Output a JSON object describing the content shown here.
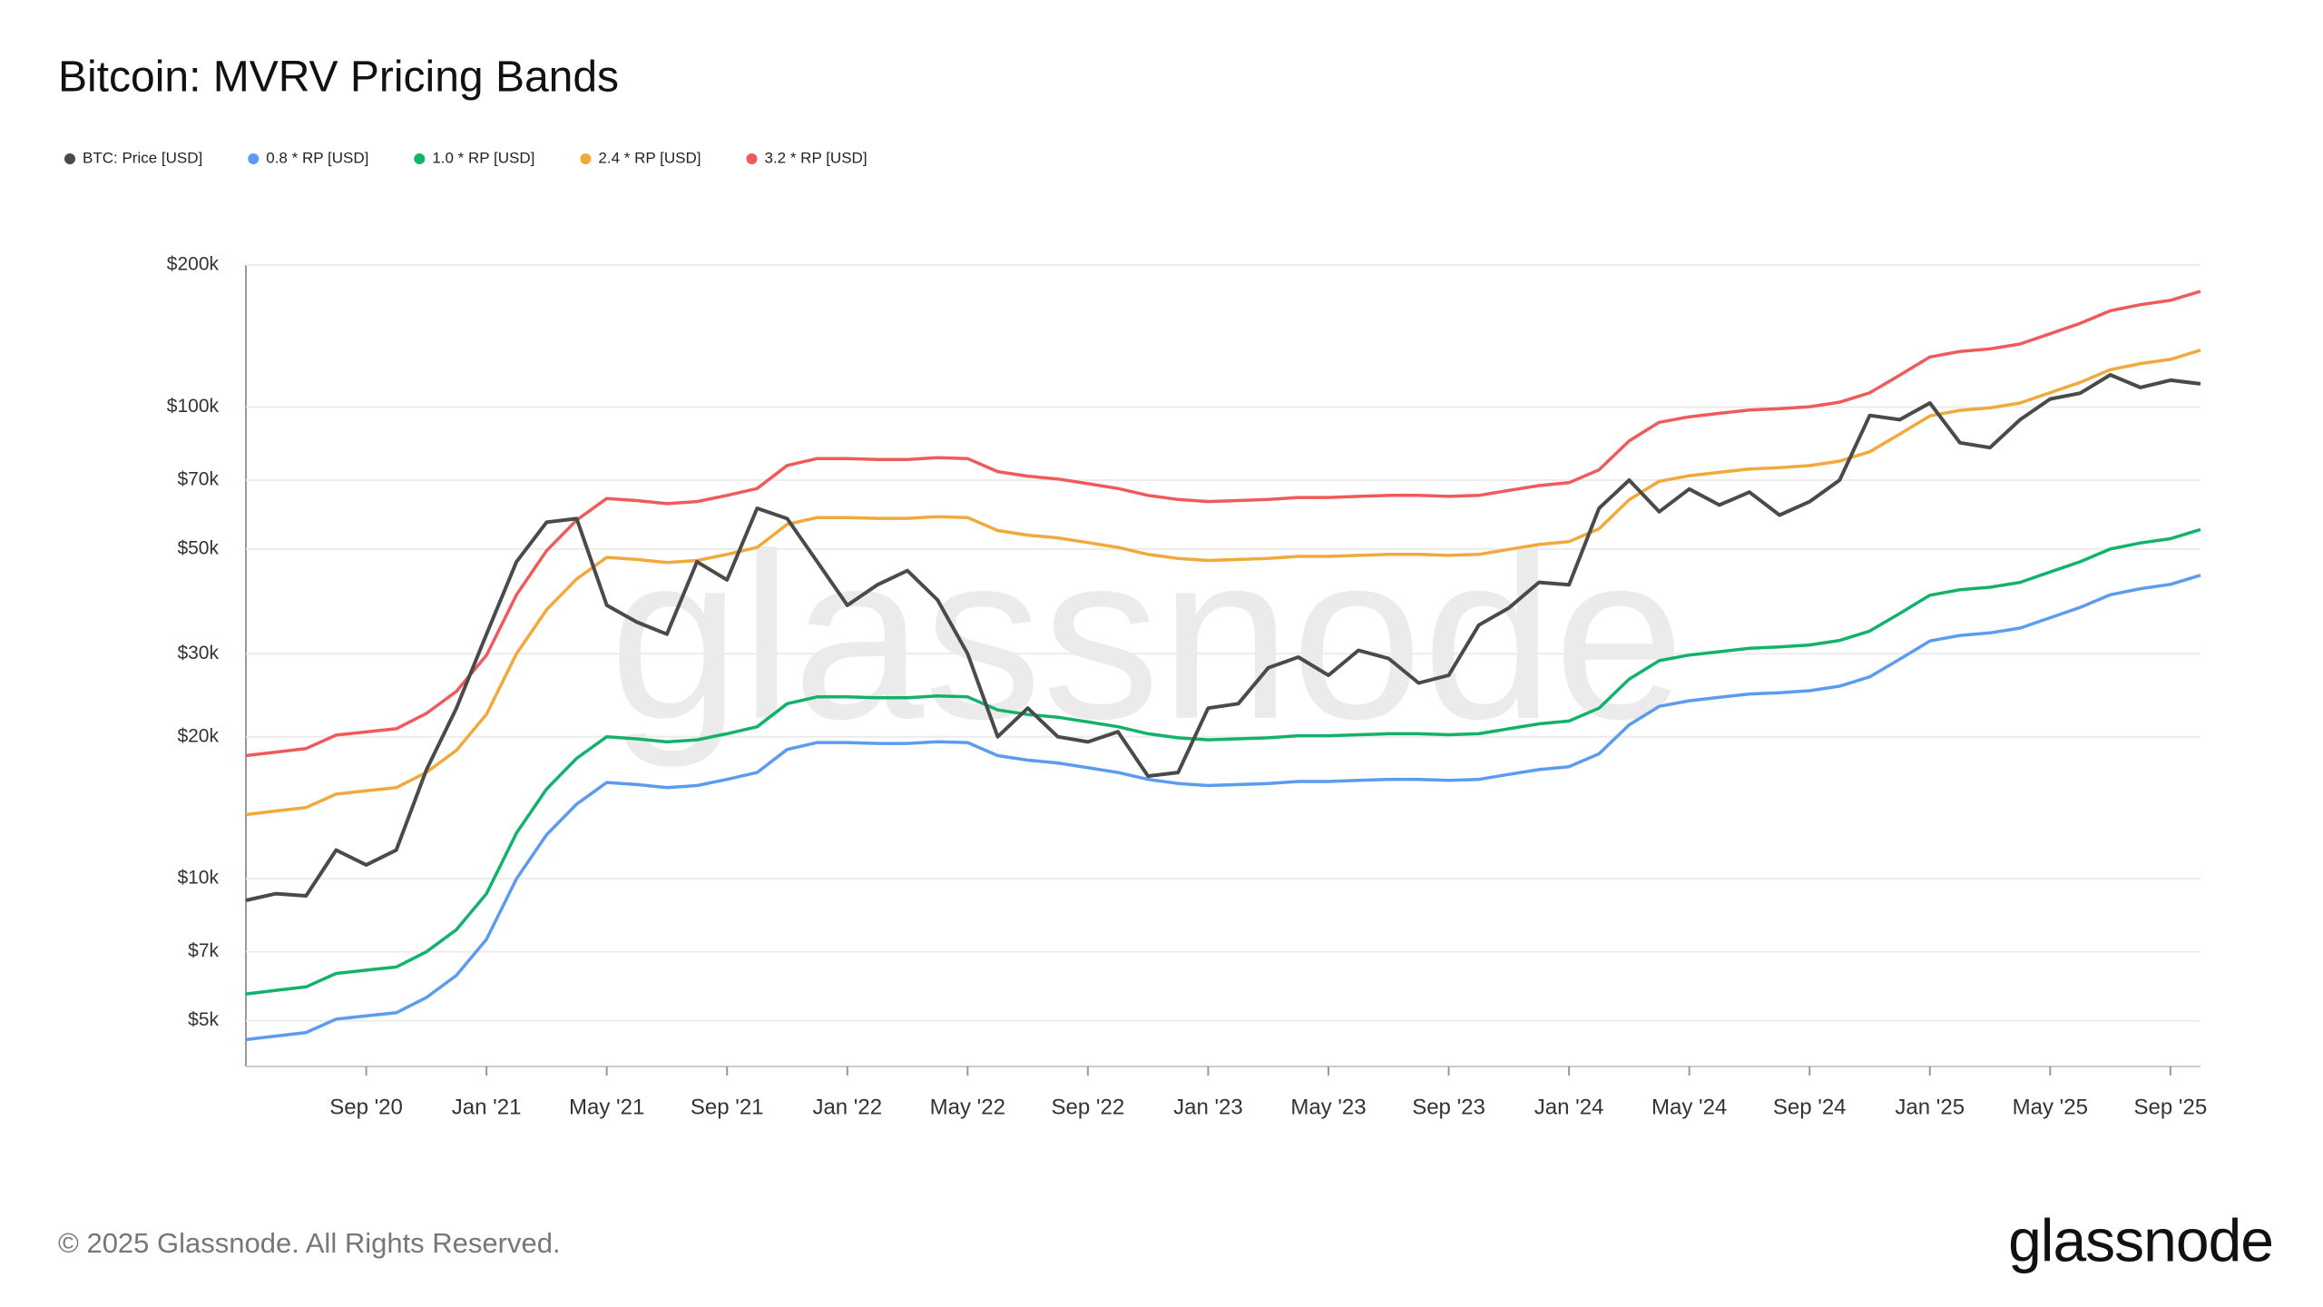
{
  "chart_data": {
    "type": "line",
    "title": "Bitcoin: MVRV Pricing Bands",
    "footer": "© 2025 Glassnode. All Rights Reserved.",
    "brand": "glassnode",
    "watermark": "glassnode",
    "yscale": "log",
    "grid": true,
    "legend": "top-left",
    "x": [
      "2020-05",
      "2020-06",
      "2020-07",
      "2020-08",
      "2020-09",
      "2020-10",
      "2020-11",
      "2020-12",
      "2021-01",
      "2021-02",
      "2021-03",
      "2021-04",
      "2021-05",
      "2021-06",
      "2021-07",
      "2021-08",
      "2021-09",
      "2021-10",
      "2021-11",
      "2021-12",
      "2022-01",
      "2022-02",
      "2022-03",
      "2022-04",
      "2022-05",
      "2022-06",
      "2022-07",
      "2022-08",
      "2022-09",
      "2022-10",
      "2022-11",
      "2022-12",
      "2023-01",
      "2023-02",
      "2023-03",
      "2023-04",
      "2023-05",
      "2023-06",
      "2023-07",
      "2023-08",
      "2023-09",
      "2023-10",
      "2023-11",
      "2023-12",
      "2024-01",
      "2024-02",
      "2024-03",
      "2024-04",
      "2024-05",
      "2024-06",
      "2024-07",
      "2024-08",
      "2024-09",
      "2024-10",
      "2024-11",
      "2024-12",
      "2025-01",
      "2025-02",
      "2025-03",
      "2025-04",
      "2025-05",
      "2025-06",
      "2025-07",
      "2025-08",
      "2025-09",
      "2025-10"
    ],
    "xticks": [
      {
        "value": "2020-09",
        "label": "Sep '20"
      },
      {
        "value": "2021-01",
        "label": "Jan '21"
      },
      {
        "value": "2021-05",
        "label": "May '21"
      },
      {
        "value": "2021-09",
        "label": "Sep '21"
      },
      {
        "value": "2022-01",
        "label": "Jan '22"
      },
      {
        "value": "2022-05",
        "label": "May '22"
      },
      {
        "value": "2022-09",
        "label": "Sep '22"
      },
      {
        "value": "2023-01",
        "label": "Jan '23"
      },
      {
        "value": "2023-05",
        "label": "May '23"
      },
      {
        "value": "2023-09",
        "label": "Sep '23"
      },
      {
        "value": "2024-01",
        "label": "Jan '24"
      },
      {
        "value": "2024-05",
        "label": "May '24"
      },
      {
        "value": "2024-09",
        "label": "Sep '24"
      },
      {
        "value": "2025-01",
        "label": "Jan '25"
      },
      {
        "value": "2025-05",
        "label": "May '25"
      },
      {
        "value": "2025-09",
        "label": "Sep '25"
      }
    ],
    "ylim": [
      4000,
      200000
    ],
    "yticks": [
      {
        "value": 5000,
        "label": "$5k"
      },
      {
        "value": 7000,
        "label": "$7k"
      },
      {
        "value": 10000,
        "label": "$10k"
      },
      {
        "value": 20000,
        "label": "$20k"
      },
      {
        "value": 30000,
        "label": "$30k"
      },
      {
        "value": 50000,
        "label": "$50k"
      },
      {
        "value": 70000,
        "label": "$70k"
      },
      {
        "value": 100000,
        "label": "$100k"
      },
      {
        "value": 200000,
        "label": "$200k"
      }
    ],
    "series": [
      {
        "name": "BTC: Price [USD]",
        "color": "#4a4a4a",
        "values": [
          9000,
          9300,
          9200,
          11500,
          10700,
          11500,
          17000,
          23000,
          33000,
          47000,
          57000,
          58000,
          38000,
          35000,
          33000,
          47000,
          43000,
          61000,
          58000,
          47000,
          38000,
          42000,
          45000,
          39000,
          30000,
          20000,
          23000,
          20000,
          19500,
          20500,
          16500,
          16800,
          23000,
          23500,
          28000,
          29500,
          27000,
          30500,
          29300,
          26000,
          27000,
          34500,
          37500,
          42500,
          42000,
          61000,
          70000,
          60000,
          67000,
          62000,
          66000,
          59000,
          63000,
          70000,
          96000,
          94000,
          102000,
          84000,
          82000,
          94000,
          104000,
          107000,
          117000,
          110000,
          114000,
          112000
        ]
      },
      {
        "name": "0.8 * RP [USD]",
        "color": "#5b9bf0",
        "values": [
          4560,
          4640,
          4720,
          5040,
          5120,
          5200,
          5600,
          6240,
          7440,
          10000,
          12400,
          14400,
          16000,
          15840,
          15600,
          15760,
          16240,
          16800,
          18800,
          19440,
          19440,
          19360,
          19360,
          19520,
          19440,
          18240,
          17840,
          17600,
          17200,
          16800,
          16240,
          15920,
          15760,
          15840,
          15920,
          16080,
          16080,
          16160,
          16240,
          16240,
          16160,
          16240,
          16640,
          17040,
          17280,
          18400,
          21200,
          23200,
          23840,
          24240,
          24640,
          24800,
          25040,
          25600,
          26800,
          29200,
          31920,
          32800,
          33200,
          34000,
          35760,
          37600,
          40000,
          41200,
          42080,
          44000
        ]
      },
      {
        "name": "1.0 * RP [USD]",
        "color": "#13b26b",
        "values": [
          5700,
          5800,
          5900,
          6300,
          6400,
          6500,
          7000,
          7800,
          9300,
          12500,
          15500,
          18000,
          20000,
          19800,
          19500,
          19700,
          20300,
          21000,
          23500,
          24300,
          24300,
          24200,
          24200,
          24400,
          24300,
          22800,
          22300,
          22000,
          21500,
          21000,
          20300,
          19900,
          19700,
          19800,
          19900,
          20100,
          20100,
          20200,
          20300,
          20300,
          20200,
          20300,
          20800,
          21300,
          21600,
          23000,
          26500,
          29000,
          29800,
          30300,
          30800,
          31000,
          31300,
          32000,
          33500,
          36500,
          39900,
          41000,
          41500,
          42500,
          44700,
          47000,
          50000,
          51500,
          52600,
          55000
        ]
      },
      {
        "name": "2.4 * RP [USD]",
        "color": "#f2a93b",
        "values": [
          13680,
          13920,
          14160,
          15120,
          15360,
          15600,
          16800,
          18720,
          22320,
          30000,
          37200,
          43200,
          48000,
          47520,
          46800,
          47280,
          48720,
          50400,
          56400,
          58320,
          58320,
          58080,
          58080,
          58560,
          58320,
          54720,
          53520,
          52800,
          51600,
          50400,
          48720,
          47760,
          47280,
          47520,
          47760,
          48240,
          48240,
          48480,
          48720,
          48720,
          48480,
          48720,
          49920,
          51120,
          51840,
          55200,
          63600,
          69600,
          71520,
          72720,
          73920,
          74400,
          75120,
          76800,
          80400,
          87600,
          95760,
          98400,
          99600,
          102000,
          107280,
          112800,
          120000,
          123600,
          126240,
          132000
        ]
      },
      {
        "name": "3.2 * RP [USD]",
        "color": "#ef5a5a",
        "values": [
          18240,
          18560,
          18880,
          20160,
          20480,
          20800,
          22400,
          24960,
          29760,
          40000,
          49600,
          57600,
          64000,
          63360,
          62400,
          63040,
          64960,
          67200,
          75200,
          77760,
          77760,
          77440,
          77440,
          78080,
          77760,
          72960,
          71360,
          70400,
          68800,
          67200,
          64960,
          63680,
          63040,
          63360,
          63680,
          64320,
          64320,
          64640,
          64960,
          64960,
          64640,
          64960,
          66560,
          68160,
          69120,
          73600,
          84800,
          92800,
          95360,
          96960,
          98560,
          99200,
          100160,
          102400,
          107200,
          116800,
          127680,
          131200,
          132800,
          136000,
          143040,
          150400,
          160000,
          164800,
          168320,
          176000
        ]
      }
    ]
  }
}
